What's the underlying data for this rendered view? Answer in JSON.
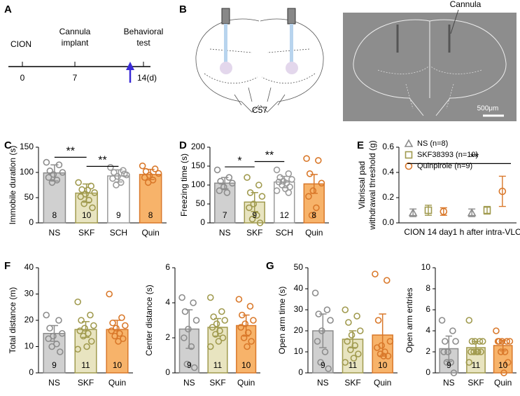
{
  "panel_labels": [
    "A",
    "B",
    "C",
    "D",
    "E",
    "F",
    "G"
  ],
  "timeline": {
    "events": [
      "CION",
      "Cannula",
      "implant",
      "Behavioral",
      "test"
    ],
    "ticks": [
      "0",
      "7",
      "14(d)"
    ]
  },
  "brain": {
    "label": "C57",
    "annotation": "Cannula",
    "scale": "500μm"
  },
  "chart_data": [
    {
      "type": "bar",
      "ylabel": "Immobile duration (s)",
      "categories": [
        "NS",
        "SKF",
        "SCH",
        "Quin"
      ],
      "values": [
        99,
        59,
        93,
        96
      ],
      "errors": [
        16,
        18,
        12,
        10
      ],
      "n_labels": [
        "8",
        "10",
        "9",
        "8"
      ],
      "colors": [
        "#d0d0d0",
        "#e8e4c0",
        "#ffffff",
        "#f7b36a"
      ],
      "edgecolors": [
        "#8c8c8c",
        "#a09a4e",
        "#9a9a9a",
        "#d9782a"
      ],
      "dots": [
        [
          120,
          115,
          103,
          100,
          96,
          90,
          85,
          80
        ],
        [
          80,
          73,
          66,
          60,
          57,
          52,
          45,
          38,
          30,
          65
        ],
        [
          110,
          104,
          100,
          95,
          92,
          88,
          80,
          75,
          97
        ],
        [
          113,
          107,
          102,
          98,
          94,
          90,
          85,
          80
        ]
      ],
      "ylim": [
        0,
        150
      ],
      "yticks": [
        0,
        50,
        100,
        150
      ],
      "significance": [
        {
          "label": "**",
          "y": 130,
          "between": [
            0,
            1
          ]
        },
        {
          "label": "**",
          "y": 112,
          "between": [
            1,
            2
          ]
        }
      ]
    },
    {
      "type": "bar",
      "ylabel": "Freezing time (s)",
      "categories": [
        "NS",
        "SKF",
        "SCH",
        "Quin"
      ],
      "values": [
        105,
        55,
        108,
        103
      ],
      "errors": [
        15,
        25,
        15,
        25
      ],
      "n_labels": [
        "7",
        "9",
        "12",
        "8"
      ],
      "colors": [
        "#d0d0d0",
        "#e8e4c0",
        "#ffffff",
        "#f7b36a"
      ],
      "edgecolors": [
        "#8c8c8c",
        "#a09a4e",
        "#9a9a9a",
        "#d9782a"
      ],
      "dots": [
        [
          140,
          120,
          110,
          105,
          95,
          85,
          80
        ],
        [
          120,
          100,
          80,
          70,
          50,
          40,
          20,
          10,
          0
        ],
        [
          140,
          130,
          120,
          115,
          110,
          108,
          105,
          100,
          95,
          90,
          85,
          80
        ],
        [
          170,
          165,
          130,
          105,
          85,
          70,
          40,
          20
        ]
      ],
      "ylim": [
        0,
        200
      ],
      "yticks": [
        0,
        50,
        100,
        150,
        200
      ],
      "significance": [
        {
          "label": "*",
          "y": 148,
          "between": [
            0,
            1
          ]
        },
        {
          "label": "**",
          "y": 162,
          "between": [
            1,
            2
          ]
        }
      ]
    },
    {
      "type": "errorbar",
      "ylabel": [
        "Vibrissal pad",
        "withdrawal threshold (g)"
      ],
      "categories": [
        "CION 14 day",
        "1 h after intra-VLO"
      ],
      "series": [
        {
          "name": "NS (n=8)",
          "color": "#8c8c8c",
          "marker": "triangle",
          "values": [
            0.08,
            0.08
          ],
          "errors": [
            0.03,
            0.03
          ]
        },
        {
          "name": "SKF38393 (n=10)",
          "color": "#a09a4e",
          "marker": "square",
          "values": [
            0.1,
            0.1
          ],
          "errors": [
            0.04,
            0.03
          ]
        },
        {
          "name": "Quinpirole (n=9)",
          "color": "#d9782a",
          "marker": "circle",
          "values": [
            0.09,
            0.25
          ],
          "errors": [
            0.03,
            0.12
          ]
        }
      ],
      "ylim": [
        0,
        0.6
      ],
      "yticks": [
        {
          "value": 0,
          "label": "0.0"
        },
        0.2,
        0.4,
        0.6
      ],
      "significance": [
        {
          "label": "**",
          "y": 0.47
        }
      ]
    },
    {
      "type": "bar",
      "ylabel": "Total distance (m)",
      "categories": [
        "NS",
        "SKF",
        "Quin"
      ],
      "values": [
        15,
        16.5,
        16.5
      ],
      "errors": [
        3,
        3,
        3.5
      ],
      "n_labels": [
        "9",
        "11",
        "10"
      ],
      "colors": [
        "#d0d0d0",
        "#e8e4c0",
        "#f7b36a"
      ],
      "edgecolors": [
        "#8c8c8c",
        "#a09a4e",
        "#d9782a"
      ],
      "dots": [
        [
          22,
          20,
          17,
          15,
          14,
          13,
          11,
          10,
          8
        ],
        [
          27,
          22,
          20,
          18,
          17,
          16,
          15,
          14,
          12,
          10,
          9
        ],
        [
          30,
          21,
          19,
          18,
          17,
          16,
          15,
          14,
          13,
          12
        ]
      ],
      "ylim": [
        0,
        40
      ],
      "yticks": [
        0,
        10,
        20,
        30,
        40
      ],
      "significance": []
    },
    {
      "type": "bar",
      "ylabel": "Center distance (s)",
      "categories": [
        "NS",
        "SKF",
        "Quin"
      ],
      "values": [
        2.5,
        2.6,
        2.7
      ],
      "errors": [
        1.1,
        0.5,
        0.6
      ],
      "n_labels": [
        "9",
        "11",
        "10"
      ],
      "colors": [
        "#d0d0d0",
        "#e8e4c0",
        "#f7b36a"
      ],
      "edgecolors": [
        "#8c8c8c",
        "#a09a4e",
        "#d9782a"
      ],
      "dots": [
        [
          4.3,
          4,
          3.5,
          3,
          2.5,
          2,
          1.5,
          0.5,
          0.3
        ],
        [
          4.3,
          3.5,
          3.2,
          3,
          2.8,
          2.6,
          2.4,
          2.2,
          2,
          1.8,
          1.5
        ],
        [
          4.2,
          3.8,
          3.3,
          3,
          2.8,
          2.6,
          2.3,
          2,
          1.8,
          1.5
        ]
      ],
      "ylim": [
        0,
        6
      ],
      "yticks": [
        0,
        2,
        4,
        6
      ],
      "significance": []
    },
    {
      "type": "bar",
      "ylabel": "Open arm time (s)",
      "categories": [
        "NS",
        "SKF",
        "Quin"
      ],
      "values": [
        20,
        16,
        18
      ],
      "errors": [
        8,
        4,
        10
      ],
      "n_labels": [
        "9",
        "11",
        "10"
      ],
      "colors": [
        "#d0d0d0",
        "#e8e4c0",
        "#f7b36a"
      ],
      "edgecolors": [
        "#8c8c8c",
        "#a09a4e",
        "#d9782a"
      ],
      "dots": [
        [
          38,
          30,
          28,
          25,
          20,
          15,
          10,
          5,
          2
        ],
        [
          30,
          27,
          24,
          20,
          18,
          15,
          13,
          11,
          9,
          7,
          5
        ],
        [
          47,
          44,
          25,
          15,
          13,
          12,
          10,
          9,
          8,
          8
        ]
      ],
      "ylim": [
        0,
        50
      ],
      "yticks": [
        0,
        10,
        20,
        30,
        40,
        50
      ],
      "significance": []
    },
    {
      "type": "bar",
      "ylabel": "Open arm entries",
      "categories": [
        "NS",
        "SKF",
        "Quin"
      ],
      "values": [
        2.3,
        2.4,
        2.6
      ],
      "errors": [
        1.2,
        0.6,
        0.5
      ],
      "n_labels": [
        "9",
        "11",
        "10"
      ],
      "colors": [
        "#d0d0d0",
        "#e8e4c0",
        "#f7b36a"
      ],
      "edgecolors": [
        "#8c8c8c",
        "#a09a4e",
        "#d9782a"
      ],
      "dots": [
        [
          5,
          4,
          3,
          3,
          2,
          2,
          1,
          1,
          0
        ],
        [
          5,
          3,
          3,
          3,
          3,
          2,
          2,
          2,
          2,
          2,
          1
        ],
        [
          4,
          3,
          3,
          3,
          3,
          3,
          2,
          2,
          1,
          0
        ]
      ],
      "ylim": [
        0,
        10
      ],
      "yticks": [
        0,
        2,
        4,
        6,
        8,
        10
      ],
      "significance": []
    }
  ]
}
